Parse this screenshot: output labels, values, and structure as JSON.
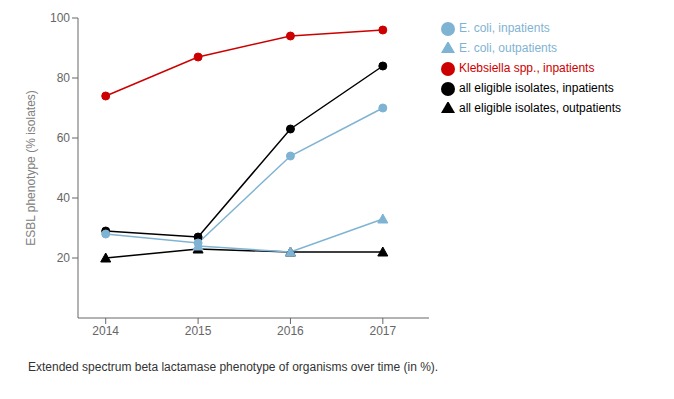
{
  "chart_data": {
    "type": "line",
    "caption": "Extended spectrum beta lactamase phenotype of organisms over time (in %).",
    "ylabel": "ESBL phenotype (% isolates)",
    "x": [
      2014,
      2015,
      2016,
      2017
    ],
    "series": [
      {
        "name": "all eligible isolates, inpatients",
        "color": "#000000",
        "marker": "circle",
        "values": [
          29,
          27,
          63,
          84
        ]
      },
      {
        "name": "all eligible isolates, outpatients",
        "color": "#000000",
        "marker": "triangle",
        "values": [
          20,
          23,
          22,
          22
        ]
      },
      {
        "name": "E. coli, inpatients",
        "color": "#7fb3d3",
        "marker": "circle",
        "values": [
          28,
          25,
          54,
          70
        ]
      },
      {
        "name": "E. coli, outpatients",
        "color": "#7fb3d3",
        "marker": "triangle",
        "values": [
          null,
          24,
          22,
          33
        ]
      },
      {
        "name": "Klebsiella spp., inpatients",
        "color": "#cc0000",
        "marker": "circle",
        "values": [
          74,
          87,
          94,
          96
        ]
      }
    ],
    "xlim": [
      2013.7,
      2017.5
    ],
    "xticks": [
      2014,
      2015,
      2016,
      2017
    ],
    "ylim": [
      0,
      100
    ],
    "yticks": [
      20,
      40,
      60,
      80,
      100
    ],
    "grid": false,
    "legend": "right"
  }
}
